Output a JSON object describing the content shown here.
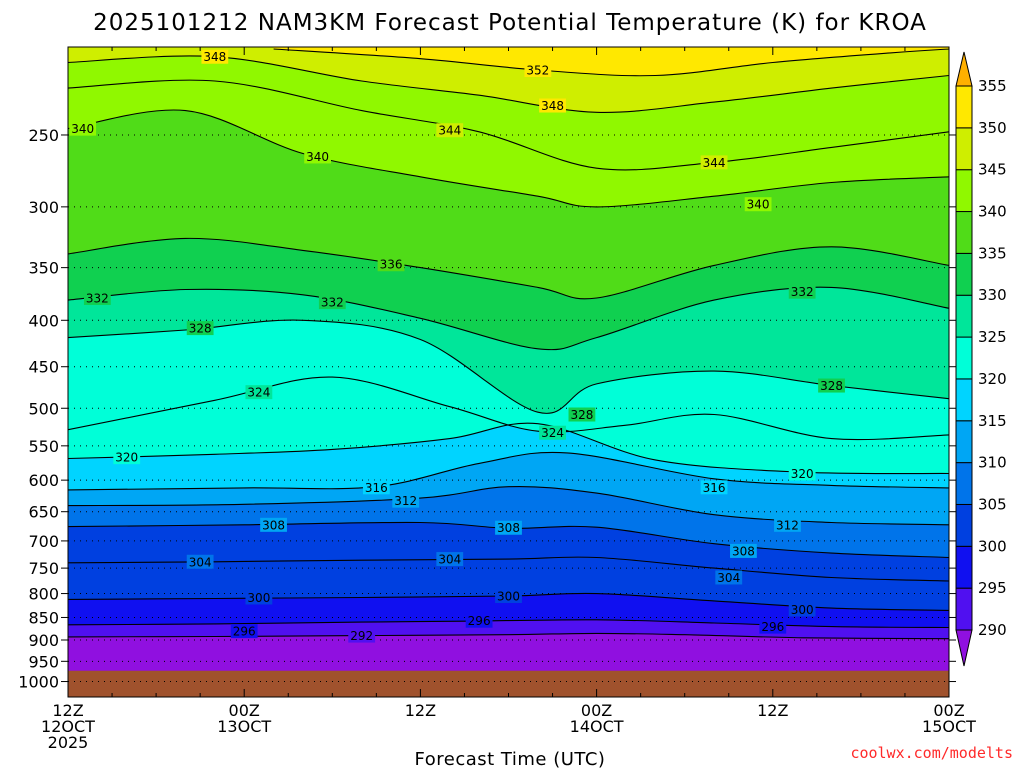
{
  "title": "2025101212 NAM3KM Forecast Potential Temperature (K) for KROA",
  "xlabel": "Forecast Time (UTC)",
  "credit": "coolwx.com/modelts",
  "chart_data": {
    "type": "heatmap",
    "title": "2025101212 NAM3KM Forecast Potential Temperature (K) for KROA",
    "xlabel": "Forecast Time (UTC)",
    "ylabel": "",
    "x_hours": [
      0,
      60
    ],
    "x_ticks": [
      {
        "hour": 0,
        "lines": [
          "12Z",
          "12OCT",
          "2025"
        ]
      },
      {
        "hour": 12,
        "lines": [
          "00Z",
          "13OCT"
        ]
      },
      {
        "hour": 24,
        "lines": [
          "12Z"
        ]
      },
      {
        "hour": 36,
        "lines": [
          "00Z",
          "14OCT"
        ]
      },
      {
        "hour": 48,
        "lines": [
          "12Z"
        ]
      },
      {
        "hour": 60,
        "lines": [
          "00Z",
          "15OCT"
        ]
      }
    ],
    "y_scale": "log-pressure",
    "y_ticks": [
      250,
      300,
      350,
      400,
      450,
      500,
      550,
      600,
      650,
      700,
      750,
      800,
      850,
      900,
      950,
      1000
    ],
    "ylim": [
      200,
      1040
    ],
    "surface_pressure_hpa": 973,
    "colorbar": {
      "levels": [
        290,
        295,
        300,
        305,
        310,
        315,
        320,
        325,
        330,
        335,
        340,
        345,
        350,
        355
      ],
      "colors": [
        "#9010e0",
        "#5010f0",
        "#1010f0",
        "#0040e0",
        "#0074ea",
        "#00a6f4",
        "#00d4ff",
        "#00ffd8",
        "#00e69a",
        "#10d050",
        "#50dc18",
        "#90f800",
        "#cfee00",
        "#ffe800",
        "#ffb000"
      ]
    },
    "isentropes": [
      {
        "theta": 292,
        "points": [
          [
            0,
            893
          ],
          [
            10,
            892
          ],
          [
            20,
            890
          ],
          [
            30,
            888
          ],
          [
            36,
            885
          ],
          [
            42,
            888
          ],
          [
            50,
            895
          ],
          [
            60,
            897
          ]
        ]
      },
      {
        "theta": 296,
        "points": [
          [
            0,
            866
          ],
          [
            10,
            864
          ],
          [
            20,
            860
          ],
          [
            27,
            858
          ],
          [
            36,
            855
          ],
          [
            44,
            862
          ],
          [
            52,
            870
          ],
          [
            60,
            872
          ]
        ]
      },
      {
        "theta": 300,
        "points": [
          [
            0,
            812
          ],
          [
            10,
            810
          ],
          [
            20,
            808
          ],
          [
            30,
            805
          ],
          [
            36,
            800
          ],
          [
            44,
            815
          ],
          [
            52,
            830
          ],
          [
            60,
            835
          ]
        ]
      },
      {
        "theta": 304,
        "points": [
          [
            0,
            740
          ],
          [
            10,
            738
          ],
          [
            20,
            735
          ],
          [
            30,
            733
          ],
          [
            36,
            730
          ],
          [
            44,
            750
          ],
          [
            52,
            768
          ],
          [
            60,
            775
          ]
        ]
      },
      {
        "theta": 308,
        "points": [
          [
            0,
            675
          ],
          [
            12,
            672
          ],
          [
            24,
            668
          ],
          [
            30,
            678
          ],
          [
            36,
            676
          ],
          [
            44,
            705
          ],
          [
            52,
            722
          ],
          [
            60,
            730
          ]
        ]
      },
      {
        "theta": 312,
        "points": [
          [
            0,
            640
          ],
          [
            12,
            638
          ],
          [
            24,
            628
          ],
          [
            30,
            610
          ],
          [
            36,
            620
          ],
          [
            44,
            655
          ],
          [
            52,
            668
          ],
          [
            60,
            672
          ]
        ]
      },
      {
        "theta": 316,
        "points": [
          [
            0,
            615
          ],
          [
            12,
            612
          ],
          [
            21,
            610
          ],
          [
            28,
            575
          ],
          [
            34,
            560
          ],
          [
            44,
            598
          ],
          [
            52,
            608
          ],
          [
            60,
            612
          ]
        ]
      },
      {
        "theta": 320,
        "points": [
          [
            0,
            568
          ],
          [
            10,
            562
          ],
          [
            18,
            555
          ],
          [
            26,
            540
          ],
          [
            32,
            520
          ],
          [
            40,
            570
          ],
          [
            50,
            588
          ],
          [
            60,
            590
          ]
        ]
      },
      {
        "theta": 324,
        "points": [
          [
            0,
            528
          ],
          [
            10,
            490
          ],
          [
            18,
            462
          ],
          [
            26,
            498
          ],
          [
            32,
            530
          ],
          [
            38,
            522
          ],
          [
            44,
            508
          ],
          [
            52,
            540
          ],
          [
            60,
            535
          ]
        ]
      },
      {
        "theta": 328,
        "points": [
          [
            0,
            418
          ],
          [
            8,
            410
          ],
          [
            16,
            400
          ],
          [
            24,
            420
          ],
          [
            32,
            505
          ],
          [
            36,
            470
          ],
          [
            44,
            455
          ],
          [
            52,
            472
          ],
          [
            60,
            488
          ]
        ]
      },
      {
        "theta": 332,
        "points": [
          [
            0,
            380
          ],
          [
            8,
            370
          ],
          [
            16,
            375
          ],
          [
            24,
            398
          ],
          [
            32,
            430
          ],
          [
            36,
            418
          ],
          [
            44,
            380
          ],
          [
            52,
            368
          ],
          [
            60,
            388
          ]
        ]
      },
      {
        "theta": 336,
        "points": [
          [
            0,
            338
          ],
          [
            8,
            325
          ],
          [
            16,
            335
          ],
          [
            24,
            350
          ],
          [
            32,
            368
          ],
          [
            36,
            378
          ],
          [
            44,
            348
          ],
          [
            52,
            332
          ],
          [
            60,
            348
          ]
        ]
      },
      {
        "theta": 340,
        "points": [
          [
            0,
            246
          ],
          [
            8,
            235
          ],
          [
            16,
            262
          ],
          [
            24,
            278
          ],
          [
            32,
            292
          ],
          [
            36,
            300
          ],
          [
            44,
            292
          ],
          [
            52,
            282
          ],
          [
            60,
            278
          ]
        ]
      },
      {
        "theta": 344,
        "points": [
          [
            0,
            222
          ],
          [
            10,
            218
          ],
          [
            20,
            235
          ],
          [
            28,
            248
          ],
          [
            36,
            272
          ],
          [
            44,
            268
          ],
          [
            52,
            258
          ],
          [
            60,
            248
          ]
        ]
      },
      {
        "theta": 348,
        "points": [
          [
            0,
            208
          ],
          [
            10,
            205
          ],
          [
            20,
            218
          ],
          [
            28,
            226
          ],
          [
            36,
            236
          ],
          [
            44,
            230
          ],
          [
            52,
            222
          ],
          [
            60,
            215
          ]
        ]
      },
      {
        "theta": 352,
        "points": [
          [
            14,
            201
          ],
          [
            24,
            206
          ],
          [
            32,
            212
          ],
          [
            40,
            215
          ],
          [
            48,
            208
          ],
          [
            56,
            203
          ],
          [
            60,
            201
          ]
        ]
      }
    ],
    "contour_labels": [
      {
        "text": "348",
        "hour": 10,
        "p": 205
      },
      {
        "text": "352",
        "hour": 32,
        "p": 212
      },
      {
        "text": "348",
        "hour": 33,
        "p": 232
      },
      {
        "text": "340",
        "hour": 1,
        "p": 246
      },
      {
        "text": "344",
        "hour": 26,
        "p": 247
      },
      {
        "text": "340",
        "hour": 17,
        "p": 264
      },
      {
        "text": "344",
        "hour": 44,
        "p": 268
      },
      {
        "text": "340",
        "hour": 47,
        "p": 298
      },
      {
        "text": "336",
        "hour": 22,
        "p": 347
      },
      {
        "text": "332",
        "hour": 2,
        "p": 378
      },
      {
        "text": "332",
        "hour": 18,
        "p": 382
      },
      {
        "text": "332",
        "hour": 50,
        "p": 372
      },
      {
        "text": "328",
        "hour": 9,
        "p": 408
      },
      {
        "text": "324",
        "hour": 13,
        "p": 480
      },
      {
        "text": "328",
        "hour": 52,
        "p": 472
      },
      {
        "text": "328",
        "hour": 35,
        "p": 508
      },
      {
        "text": "324",
        "hour": 33,
        "p": 532
      },
      {
        "text": "320",
        "hour": 4,
        "p": 566
      },
      {
        "text": "320",
        "hour": 50,
        "p": 590
      },
      {
        "text": "316",
        "hour": 21,
        "p": 611
      },
      {
        "text": "316",
        "hour": 44,
        "p": 611
      },
      {
        "text": "312",
        "hour": 23,
        "p": 632
      },
      {
        "text": "312",
        "hour": 49,
        "p": 672
      },
      {
        "text": "308",
        "hour": 14,
        "p": 672
      },
      {
        "text": "308",
        "hour": 30,
        "p": 677
      },
      {
        "text": "308",
        "hour": 46,
        "p": 718
      },
      {
        "text": "304",
        "hour": 9,
        "p": 738
      },
      {
        "text": "304",
        "hour": 26,
        "p": 733
      },
      {
        "text": "304",
        "hour": 45,
        "p": 768
      },
      {
        "text": "300",
        "hour": 13,
        "p": 808
      },
      {
        "text": "300",
        "hour": 30,
        "p": 805
      },
      {
        "text": "300",
        "hour": 50,
        "p": 833
      },
      {
        "text": "296",
        "hour": 28,
        "p": 857
      },
      {
        "text": "296",
        "hour": 12,
        "p": 880
      },
      {
        "text": "296",
        "hour": 48,
        "p": 870
      },
      {
        "text": "292",
        "hour": 20,
        "p": 890
      }
    ]
  }
}
